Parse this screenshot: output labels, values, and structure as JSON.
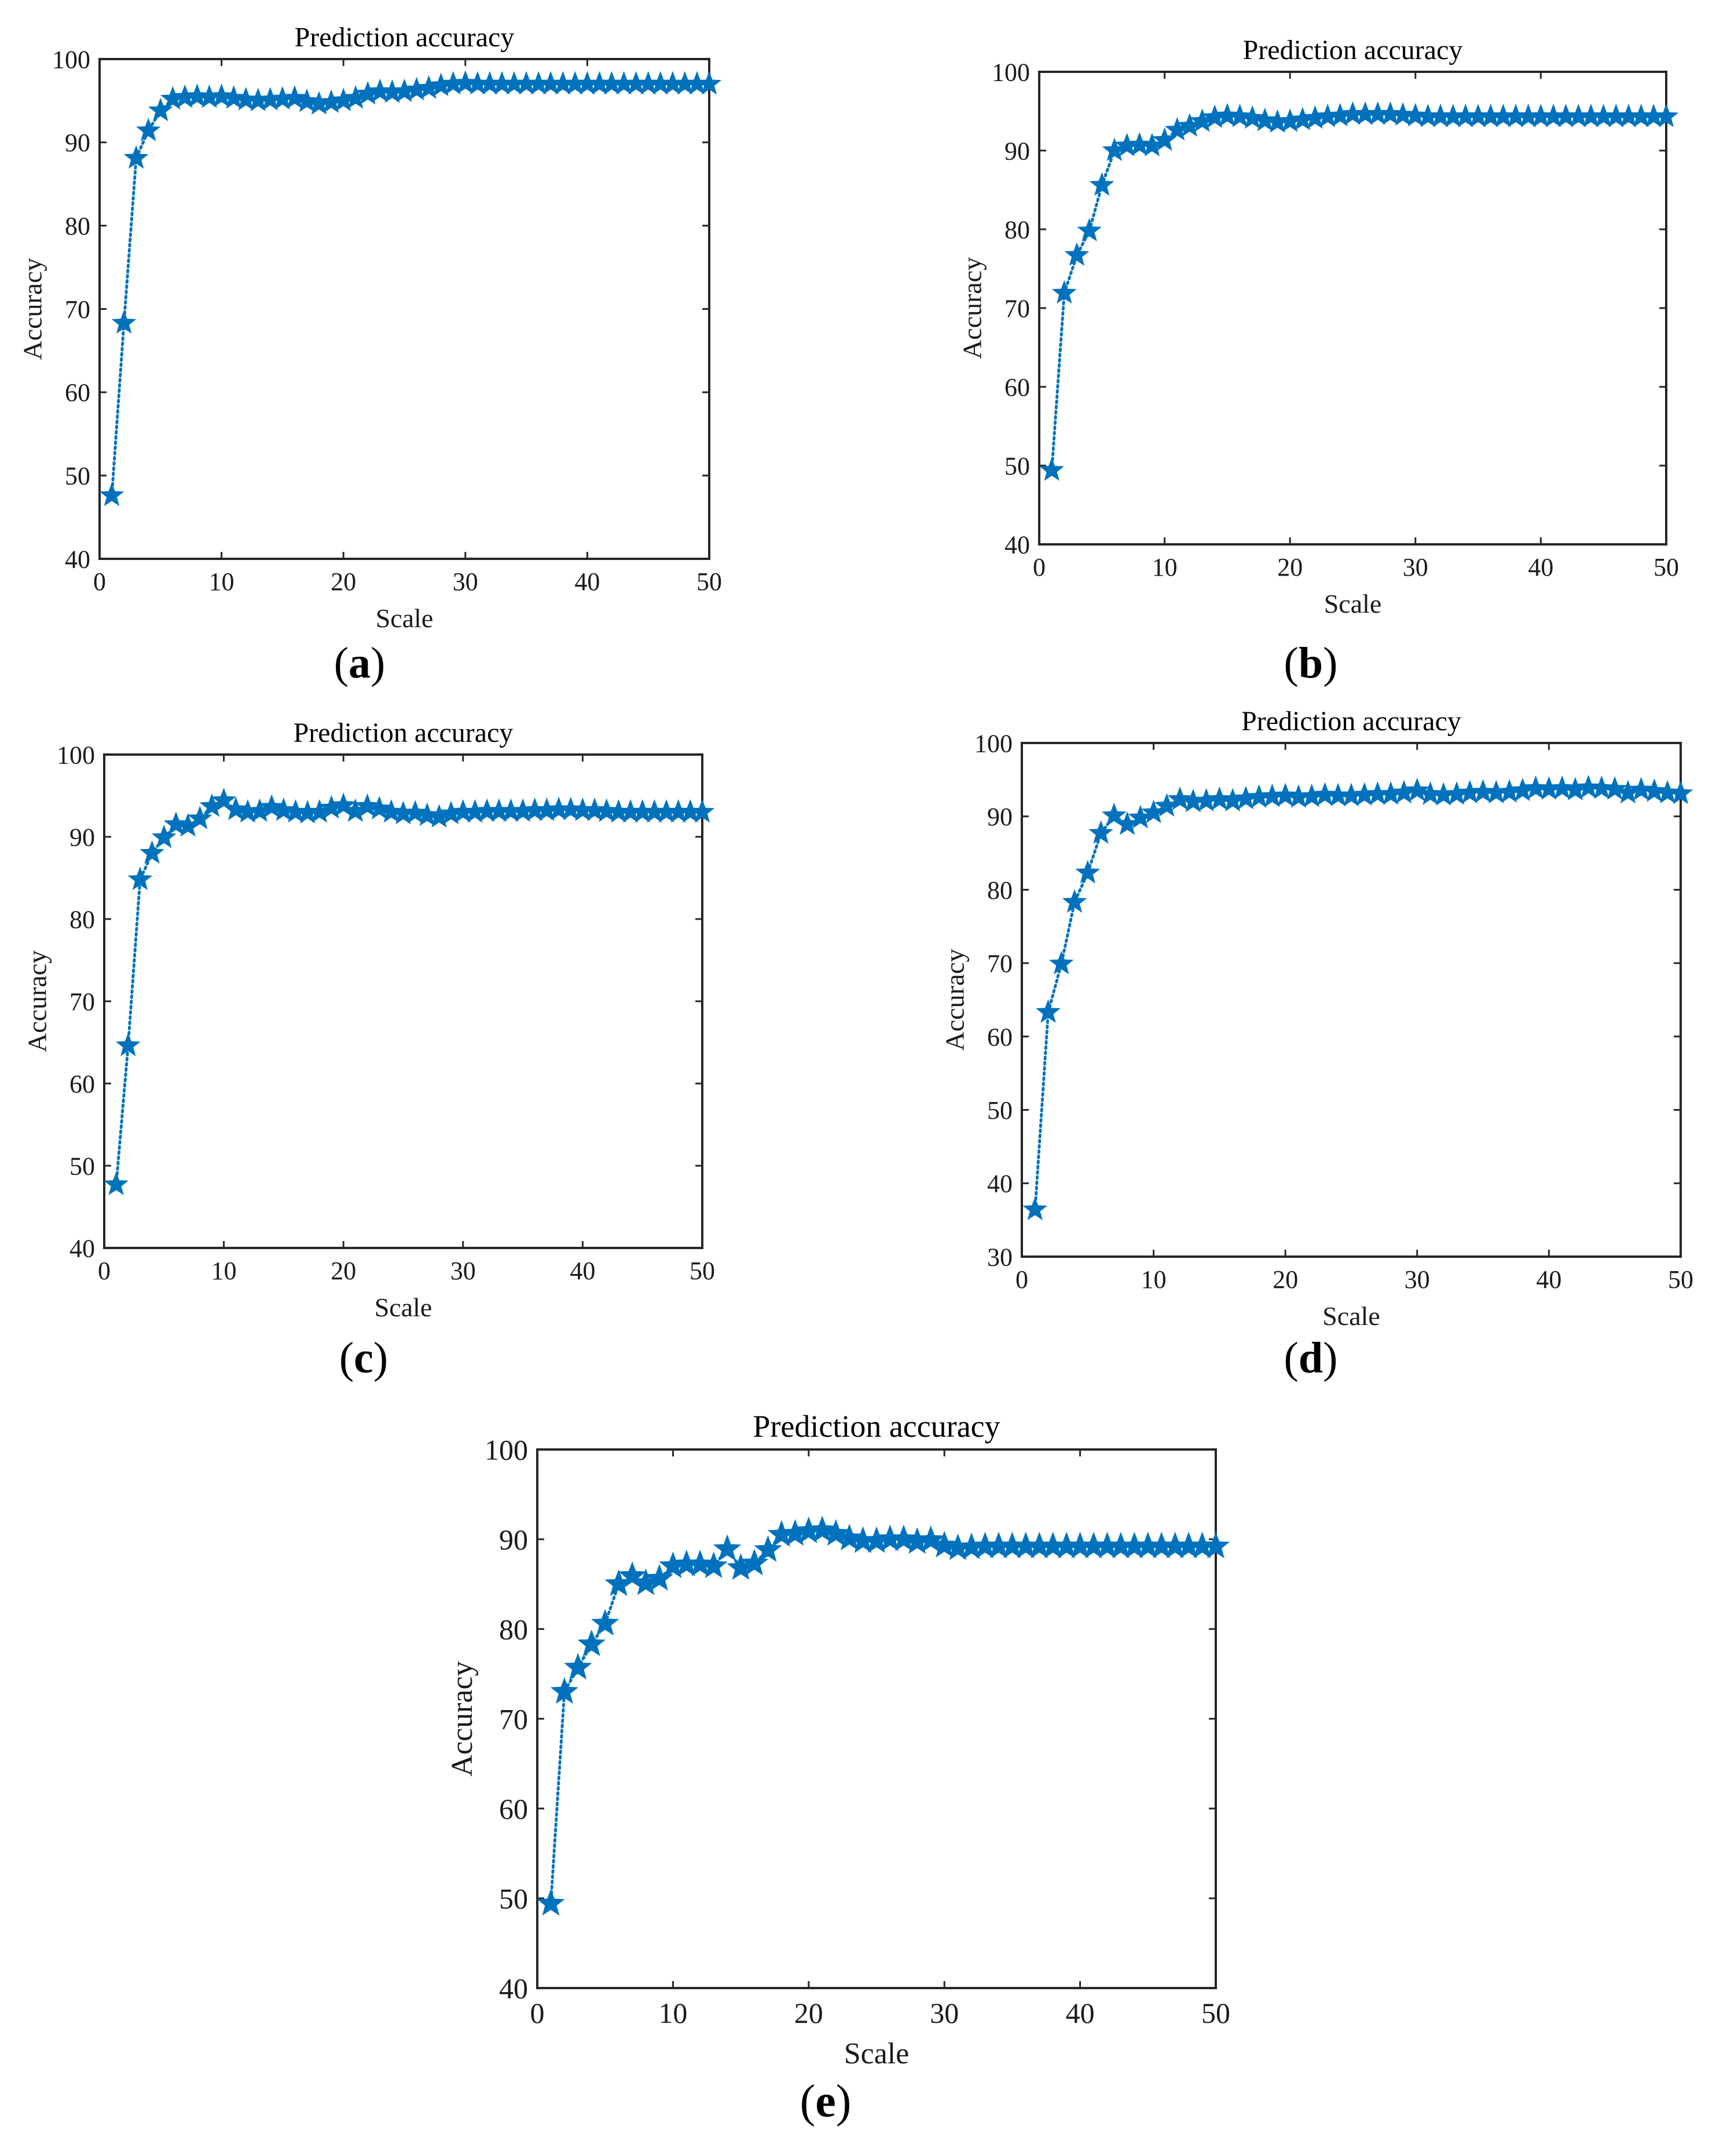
{
  "chart_data": [
    {
      "type": "line",
      "panel": "a",
      "caption_letter": "a",
      "title": "Prediction accuracy",
      "xlabel": "Scale",
      "ylabel": "Accuracy",
      "xlim": [
        0,
        50
      ],
      "ylim": [
        40,
        100
      ],
      "xticks": [
        0,
        10,
        20,
        30,
        40,
        50
      ],
      "yticks": [
        40,
        50,
        60,
        70,
        80,
        90,
        100
      ],
      "grid": false,
      "legend": "none",
      "marker": "star",
      "line_style": "dotted",
      "color": "#0072BD",
      "series": [
        {
          "x": [
            1,
            2,
            3,
            4,
            5,
            6,
            7,
            8,
            9,
            10,
            11,
            12,
            13,
            14,
            15,
            16,
            17,
            18,
            19,
            20,
            21,
            22,
            23,
            24,
            25,
            26,
            27,
            28,
            29,
            30,
            31,
            32,
            33,
            34,
            35,
            36,
            37,
            38,
            39,
            40,
            41,
            42,
            43,
            44,
            45,
            46,
            47,
            48,
            49,
            50
          ],
          "values": [
            47.6,
            68.3,
            88.1,
            91.4,
            93.8,
            95.2,
            95.4,
            95.5,
            95.4,
            95.5,
            95.3,
            95.1,
            95.0,
            95.1,
            95.2,
            95.3,
            94.9,
            94.6,
            94.8,
            95.0,
            95.3,
            95.8,
            96.1,
            96.0,
            96.1,
            96.3,
            96.5,
            96.8,
            97.0,
            97.1,
            97.0,
            97.0,
            97.0,
            97.0,
            97.0,
            97.0,
            97.0,
            97.0,
            97.0,
            97.0,
            97.0,
            97.0,
            97.0,
            97.0,
            97.0,
            97.0,
            97.0,
            97.0,
            97.0,
            97.0
          ]
        }
      ]
    },
    {
      "type": "line",
      "panel": "b",
      "caption_letter": "b",
      "title": "Prediction accuracy",
      "xlabel": "Scale",
      "ylabel": "Accuracy",
      "xlim": [
        0,
        50
      ],
      "ylim": [
        40,
        100
      ],
      "xticks": [
        0,
        10,
        20,
        30,
        40,
        50
      ],
      "yticks": [
        40,
        50,
        60,
        70,
        80,
        90,
        100
      ],
      "grid": false,
      "legend": "none",
      "marker": "star",
      "line_style": "dotted",
      "color": "#0072BD",
      "series": [
        {
          "x": [
            1,
            2,
            3,
            4,
            5,
            6,
            7,
            8,
            9,
            10,
            11,
            12,
            13,
            14,
            15,
            16,
            17,
            18,
            19,
            20,
            21,
            22,
            23,
            24,
            25,
            26,
            27,
            28,
            29,
            30,
            31,
            32,
            33,
            34,
            35,
            36,
            37,
            38,
            39,
            40,
            41,
            42,
            43,
            44,
            45,
            46,
            47,
            48,
            49,
            50
          ],
          "values": [
            49.4,
            71.9,
            76.7,
            79.8,
            85.6,
            90.0,
            90.6,
            90.7,
            90.6,
            91.3,
            92.6,
            93.1,
            93.7,
            94.2,
            94.4,
            94.3,
            94.1,
            93.8,
            93.6,
            93.7,
            93.9,
            94.1,
            94.3,
            94.4,
            94.6,
            94.6,
            94.6,
            94.6,
            94.5,
            94.4,
            94.3,
            94.3,
            94.3,
            94.3,
            94.3,
            94.3,
            94.3,
            94.3,
            94.3,
            94.3,
            94.3,
            94.3,
            94.3,
            94.3,
            94.3,
            94.3,
            94.3,
            94.3,
            94.3,
            94.3
          ]
        }
      ]
    },
    {
      "type": "line",
      "panel": "c",
      "caption_letter": "c",
      "title": "Prediction accuracy",
      "xlabel": "Scale",
      "ylabel": "Accuracy",
      "xlim": [
        0,
        50
      ],
      "ylim": [
        40,
        100
      ],
      "xticks": [
        0,
        10,
        20,
        30,
        40,
        50
      ],
      "yticks": [
        40,
        50,
        60,
        70,
        80,
        90,
        100
      ],
      "grid": false,
      "legend": "none",
      "marker": "star",
      "line_style": "dotted",
      "color": "#0072BD",
      "series": [
        {
          "x": [
            1,
            2,
            3,
            4,
            5,
            6,
            7,
            8,
            9,
            10,
            11,
            12,
            13,
            14,
            15,
            16,
            17,
            18,
            19,
            20,
            21,
            22,
            23,
            24,
            25,
            26,
            27,
            28,
            29,
            30,
            31,
            32,
            33,
            34,
            35,
            36,
            37,
            38,
            39,
            40,
            41,
            42,
            43,
            44,
            45,
            46,
            47,
            48,
            49,
            50
          ],
          "values": [
            47.7,
            64.6,
            84.8,
            88.0,
            89.9,
            91.5,
            91.3,
            92.2,
            93.7,
            94.4,
            93.3,
            93.0,
            93.1,
            93.6,
            93.2,
            93.0,
            92.9,
            93.0,
            93.5,
            93.8,
            93.1,
            93.7,
            93.4,
            93.0,
            92.8,
            92.9,
            92.6,
            92.4,
            92.8,
            93.0,
            93.0,
            93.1,
            93.1,
            93.1,
            93.1,
            93.2,
            93.2,
            93.3,
            93.3,
            93.2,
            93.2,
            93.1,
            93.0,
            93.0,
            93.0,
            93.0,
            93.0,
            93.0,
            93.0,
            93.0
          ]
        }
      ]
    },
    {
      "type": "line",
      "panel": "d",
      "caption_letter": "d",
      "title": "Prediction accuracy",
      "xlabel": "Scale",
      "ylabel": "Accuracy",
      "xlim": [
        0,
        50
      ],
      "ylim": [
        30,
        100
      ],
      "xticks": [
        0,
        10,
        20,
        30,
        40,
        50
      ],
      "yticks": [
        30,
        40,
        50,
        60,
        70,
        80,
        90,
        100
      ],
      "grid": false,
      "legend": "none",
      "marker": "star",
      "line_style": "dotted",
      "color": "#0072BD",
      "series": [
        {
          "x": [
            1,
            2,
            3,
            4,
            5,
            6,
            7,
            8,
            9,
            10,
            11,
            12,
            13,
            14,
            15,
            16,
            17,
            18,
            19,
            20,
            21,
            22,
            23,
            24,
            25,
            26,
            27,
            28,
            29,
            30,
            31,
            32,
            33,
            34,
            35,
            36,
            37,
            38,
            39,
            40,
            41,
            42,
            43,
            44,
            45,
            46,
            47,
            48,
            49,
            50
          ],
          "values": [
            36.4,
            63.3,
            69.9,
            78.3,
            82.3,
            87.7,
            90.1,
            88.9,
            89.8,
            90.5,
            91.4,
            92.3,
            92.0,
            92.1,
            92.3,
            92.1,
            92.4,
            92.6,
            92.7,
            92.8,
            92.6,
            92.7,
            92.9,
            92.8,
            92.8,
            92.9,
            93.0,
            93.0,
            93.2,
            93.5,
            93.0,
            92.9,
            93.0,
            93.2,
            93.3,
            93.2,
            93.3,
            93.5,
            93.8,
            93.7,
            93.8,
            93.6,
            93.9,
            93.8,
            93.7,
            93.2,
            93.6,
            93.4,
            93.2,
            93.1
          ]
        }
      ]
    },
    {
      "type": "line",
      "panel": "e",
      "caption_letter": "e",
      "title": "Prediction accuracy",
      "xlabel": "Scale",
      "ylabel": "Accuracy",
      "xlim": [
        0,
        50
      ],
      "ylim": [
        40,
        100
      ],
      "xticks": [
        0,
        10,
        20,
        30,
        40,
        50
      ],
      "yticks": [
        40,
        50,
        60,
        70,
        80,
        90,
        100
      ],
      "grid": false,
      "legend": "none",
      "marker": "star",
      "line_style": "dotted",
      "color": "#0072BD",
      "series": [
        {
          "x": [
            1,
            2,
            3,
            4,
            5,
            6,
            7,
            8,
            9,
            10,
            11,
            12,
            13,
            14,
            15,
            16,
            17,
            18,
            19,
            20,
            21,
            22,
            23,
            24,
            25,
            26,
            27,
            28,
            29,
            30,
            31,
            32,
            33,
            34,
            35,
            36,
            37,
            38,
            39,
            40,
            41,
            42,
            43,
            44,
            45,
            46,
            47,
            48,
            49,
            50
          ],
          "values": [
            49.4,
            73.0,
            75.7,
            78.3,
            80.6,
            85.0,
            85.9,
            85.1,
            85.6,
            87.0,
            87.2,
            87.2,
            87.0,
            88.9,
            86.8,
            87.3,
            88.8,
            90.5,
            90.6,
            90.9,
            91.0,
            90.6,
            90.1,
            89.8,
            89.8,
            90.0,
            90.0,
            89.7,
            89.9,
            89.3,
            89.0,
            89.1,
            89.2,
            89.2,
            89.2,
            89.2,
            89.2,
            89.2,
            89.2,
            89.2,
            89.2,
            89.2,
            89.2,
            89.2,
            89.2,
            89.2,
            89.2,
            89.2,
            89.2,
            89.2
          ]
        }
      ]
    }
  ]
}
